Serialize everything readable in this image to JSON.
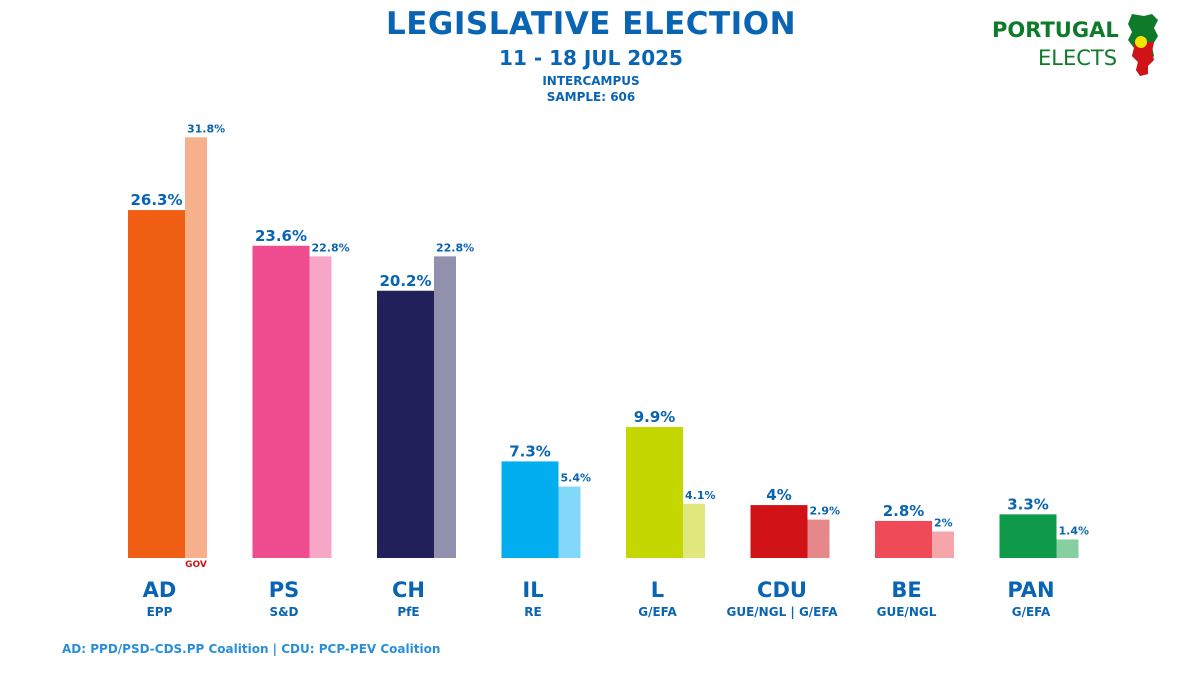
{
  "header": {
    "title": "LEGISLATIVE ELECTION",
    "dates": "11 - 18 JUL 2025",
    "pollster": "INTERCAMPUS",
    "sample": "SAMPLE: 606"
  },
  "logo": {
    "line1": "PORTUGAL",
    "line2": "ELECTS",
    "icon": "portugal-map-icon"
  },
  "footnote": "AD: PPD/PSD-CDS.PP Coalition | CDU: PCP-PEV Coalition",
  "chart_data": {
    "type": "bar",
    "categories": [
      "AD",
      "PS",
      "CH",
      "IL",
      "L",
      "CDU",
      "BE",
      "PAN"
    ],
    "groups": [
      "EPP",
      "S&D",
      "PfE",
      "RE",
      "G/EFA",
      "GUE/NGL | G/EFA",
      "GUE/NGL",
      "G/EFA"
    ],
    "series": [
      {
        "values": [
          26.3,
          23.6,
          20.2,
          7.3,
          9.9,
          4,
          2.8,
          3.3
        ],
        "labels": [
          "26.3%",
          "23.6%",
          "20.2%",
          "7.3%",
          "9.9%",
          "4%",
          "2.8%",
          "3.3%"
        ],
        "colors": [
          "#f05f13",
          "#ef4b8f",
          "#21205a",
          "#02aeef",
          "#c5d700",
          "#d11318",
          "#ef4a58",
          "#0e9a49"
        ]
      },
      {
        "values": [
          31.8,
          22.8,
          22.8,
          5.4,
          4.1,
          2.9,
          2,
          1.4
        ],
        "labels": [
          "31.8%",
          "22.8%",
          "22.8%",
          "5.4%",
          "4.1%",
          "2.9%",
          "2%",
          "1.4%"
        ],
        "colors": [
          "#f6b08b",
          "#f7a6c8",
          "#9191ae",
          "#83d7f8",
          "#e0e87d",
          "#e68789",
          "#f6a5ab",
          "#85cfa1"
        ]
      }
    ],
    "annotation": "GOV",
    "ylim": [
      0,
      33
    ],
    "xlabel": "",
    "ylabel": "",
    "grid": false,
    "legend": "none"
  }
}
